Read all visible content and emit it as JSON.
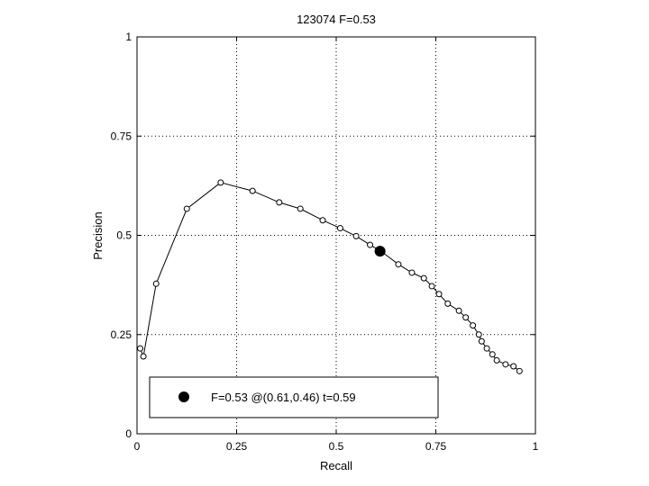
{
  "chart_data": {
    "type": "line",
    "title": "123074 F=0.53",
    "xlabel": "Recall",
    "ylabel": "Precision",
    "xlim": [
      0,
      1
    ],
    "ylim": [
      0,
      1
    ],
    "grid": true,
    "xticks": [
      0,
      0.25,
      0.5,
      0.75,
      1
    ],
    "yticks": [
      0,
      0.25,
      0.5,
      0.75,
      1
    ],
    "xtick_labels": [
      "0",
      "0.25",
      "0.5",
      "0.75",
      "1"
    ],
    "ytick_labels": [
      "0",
      "0.25",
      "0.5",
      "0.75",
      "1"
    ],
    "series": [
      {
        "x": [
          0.008,
          0.016,
          0.048,
          0.125,
          0.21,
          0.29,
          0.357,
          0.41,
          0.466,
          0.51,
          0.55,
          0.585,
          0.615,
          0.656,
          0.69,
          0.72,
          0.74,
          0.758,
          0.78,
          0.808,
          0.825,
          0.843,
          0.858,
          0.865,
          0.878,
          0.892,
          0.903,
          0.925,
          0.945,
          0.96
        ],
        "y": [
          0.215,
          0.195,
          0.378,
          0.567,
          0.633,
          0.612,
          0.583,
          0.567,
          0.538,
          0.518,
          0.498,
          0.476,
          0.458,
          0.427,
          0.406,
          0.392,
          0.372,
          0.352,
          0.328,
          0.31,
          0.293,
          0.273,
          0.25,
          0.233,
          0.215,
          0.2,
          0.185,
          0.175,
          0.17,
          0.158
        ]
      }
    ],
    "optimal_point": {
      "x": 0.61,
      "y": 0.46
    },
    "legend": {
      "placement": "bottom-left",
      "text": "F=0.53 @(0.61,0.46) t=0.59"
    }
  }
}
